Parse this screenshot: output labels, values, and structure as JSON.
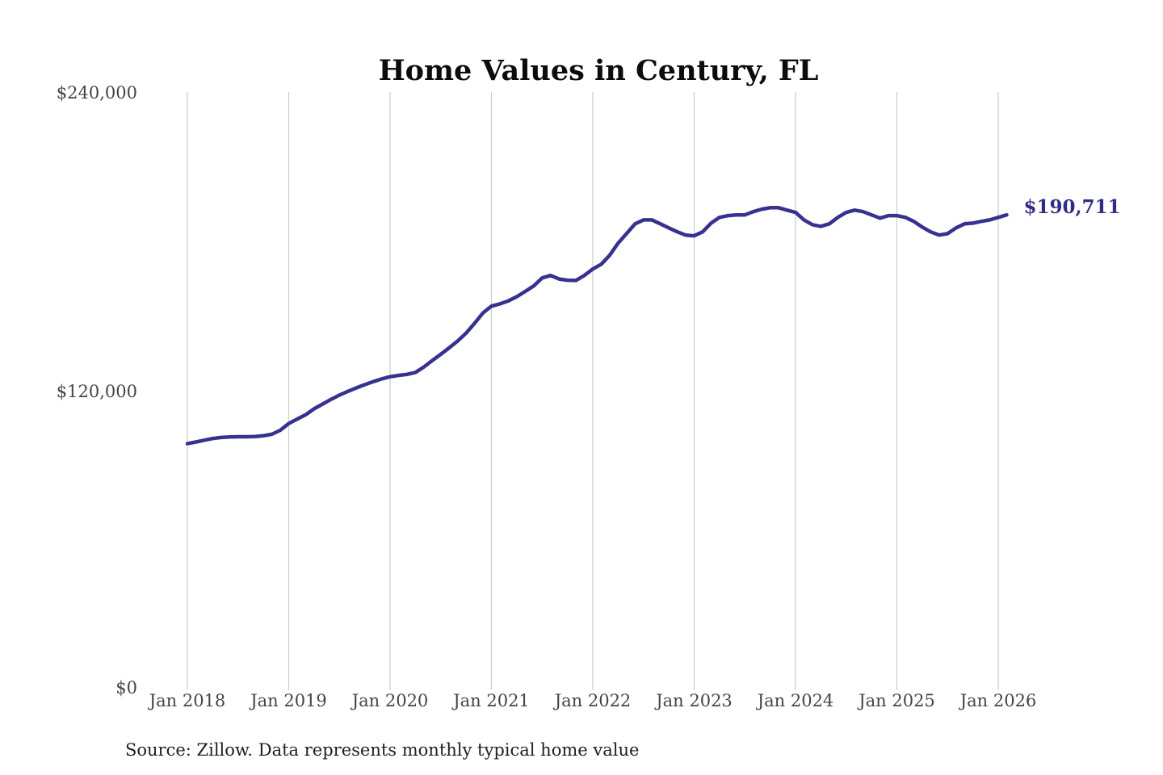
{
  "page": {
    "title": "Home Values in Century, FL",
    "source_note": "Source: Zillow. Data represents monthly typical home value"
  },
  "chart_data": {
    "type": "line",
    "title": "Home Values in Century, FL",
    "series_name": "Monthly typical home value",
    "unit": "USD",
    "frequency": "monthly",
    "x_start": "2018-01",
    "x_end": "2026-02",
    "xlabel": "",
    "ylabel": "",
    "ylim": [
      0,
      240000
    ],
    "y_tick_values": [
      240000,
      120000,
      0
    ],
    "y_ticks": [
      "$240,000",
      "$120,000",
      "$0"
    ],
    "x_tick_labels": [
      "Jan 2018",
      "Jan 2019",
      "Jan 2020",
      "Jan 2021",
      "Jan 2022",
      "Jan 2023",
      "Jan 2024",
      "Jan 2025",
      "Jan 2026"
    ],
    "grid": "vertical-only",
    "legend": "none",
    "end_label": "$190,711",
    "end_value": 190711,
    "line_color": "#373190",
    "grid_color": "#cccccc",
    "values": [
      98900,
      99600,
      100300,
      101000,
      101400,
      101600,
      101700,
      101700,
      101800,
      102100,
      102700,
      104300,
      107000,
      108800,
      110500,
      112900,
      114800,
      116700,
      118400,
      119900,
      121300,
      122600,
      123800,
      124900,
      125800,
      126300,
      126700,
      127500,
      129700,
      132300,
      134800,
      137400,
      140100,
      143300,
      147200,
      151400,
      154100,
      155000,
      156200,
      157900,
      160000,
      162200,
      165400,
      166400,
      165000,
      164500,
      164400,
      166400,
      169000,
      170900,
      174500,
      179400,
      183200,
      187100,
      188700,
      188700,
      187100,
      185500,
      183900,
      182600,
      182300,
      183900,
      187400,
      189700,
      190400,
      190700,
      190700,
      192000,
      193000,
      193600,
      193600,
      192600,
      191700,
      188700,
      186800,
      186100,
      187100,
      189700,
      191700,
      192600,
      192000,
      190700,
      189400,
      190400,
      190400,
      189700,
      188100,
      185800,
      183900,
      182600,
      183200,
      185500,
      187100,
      187400,
      188100,
      188700,
      189700,
      190711
    ]
  }
}
